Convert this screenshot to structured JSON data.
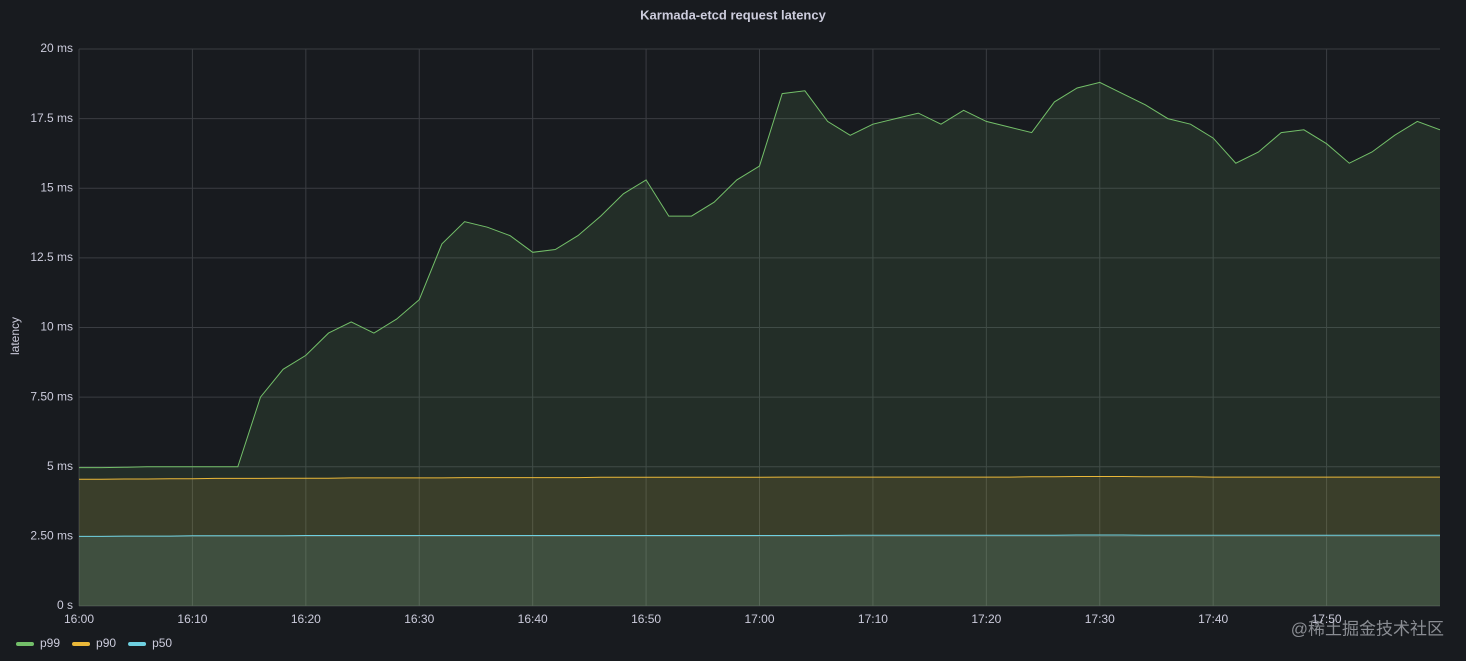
{
  "chart_data": {
    "type": "line",
    "title": "Karmada-etcd request latency",
    "y_label": "latency",
    "x": [
      0,
      2,
      4,
      6,
      8,
      10,
      12,
      14,
      16,
      18,
      20,
      22,
      24,
      26,
      28,
      30,
      32,
      34,
      36,
      38,
      40,
      42,
      44,
      46,
      48,
      50,
      52,
      54,
      56,
      58,
      60,
      62,
      64,
      66,
      68,
      70,
      72,
      74,
      76,
      78,
      80,
      82,
      84,
      86,
      88,
      90,
      92,
      94,
      96,
      98,
      100,
      102,
      104,
      106,
      108,
      110,
      112,
      114,
      116,
      118,
      120
    ],
    "series": [
      {
        "name": "p99",
        "color": "#73bf69",
        "values": [
          4.97,
          4.97,
          4.98,
          5.0,
          5.0,
          5.0,
          5.0,
          5.0,
          7.5,
          8.5,
          9.0,
          9.8,
          10.2,
          9.8,
          10.3,
          11.0,
          13.0,
          13.8,
          13.6,
          13.3,
          12.7,
          12.8,
          13.3,
          14.0,
          14.8,
          15.3,
          14.0,
          14.0,
          14.5,
          15.3,
          15.8,
          18.4,
          18.5,
          17.4,
          16.9,
          17.3,
          17.5,
          17.7,
          17.3,
          17.8,
          17.4,
          17.2,
          17.0,
          18.1,
          18.6,
          18.8,
          18.4,
          18.0,
          17.5,
          17.3,
          16.8,
          15.9,
          16.3,
          17.0,
          17.1,
          16.6,
          15.9,
          16.3,
          16.9,
          17.4,
          17.1
        ]
      },
      {
        "name": "p90",
        "color": "#eab839",
        "values": [
          4.55,
          4.55,
          4.56,
          4.56,
          4.57,
          4.57,
          4.58,
          4.58,
          4.58,
          4.59,
          4.59,
          4.59,
          4.6,
          4.6,
          4.6,
          4.6,
          4.6,
          4.61,
          4.61,
          4.61,
          4.61,
          4.61,
          4.61,
          4.62,
          4.62,
          4.62,
          4.62,
          4.62,
          4.62,
          4.62,
          4.62,
          4.63,
          4.63,
          4.63,
          4.63,
          4.63,
          4.63,
          4.63,
          4.63,
          4.63,
          4.63,
          4.63,
          4.64,
          4.64,
          4.65,
          4.65,
          4.65,
          4.64,
          4.64,
          4.64,
          4.63,
          4.63,
          4.63,
          4.63,
          4.63,
          4.63,
          4.63,
          4.63,
          4.63,
          4.63,
          4.63
        ]
      },
      {
        "name": "p50",
        "color": "#6ed0e0",
        "values": [
          2.5,
          2.5,
          2.51,
          2.51,
          2.51,
          2.52,
          2.52,
          2.52,
          2.52,
          2.52,
          2.53,
          2.53,
          2.53,
          2.53,
          2.53,
          2.53,
          2.53,
          2.53,
          2.53,
          2.53,
          2.53,
          2.53,
          2.53,
          2.53,
          2.53,
          2.53,
          2.53,
          2.53,
          2.53,
          2.53,
          2.53,
          2.53,
          2.53,
          2.53,
          2.54,
          2.54,
          2.54,
          2.54,
          2.54,
          2.54,
          2.54,
          2.54,
          2.54,
          2.54,
          2.55,
          2.55,
          2.55,
          2.54,
          2.54,
          2.54,
          2.54,
          2.54,
          2.54,
          2.54,
          2.54,
          2.54,
          2.54,
          2.54,
          2.54,
          2.54,
          2.54
        ]
      }
    ],
    "xlim": [
      0,
      120
    ],
    "ylim": [
      0,
      20
    ],
    "xticks": [
      {
        "value": 0,
        "label": "16:00"
      },
      {
        "value": 10,
        "label": "16:10"
      },
      {
        "value": 20,
        "label": "16:20"
      },
      {
        "value": 30,
        "label": "16:30"
      },
      {
        "value": 40,
        "label": "16:40"
      },
      {
        "value": 50,
        "label": "16:50"
      },
      {
        "value": 60,
        "label": "17:00"
      },
      {
        "value": 70,
        "label": "17:10"
      },
      {
        "value": 80,
        "label": "17:20"
      },
      {
        "value": 90,
        "label": "17:30"
      },
      {
        "value": 100,
        "label": "17:40"
      },
      {
        "value": 110,
        "label": "17:50"
      }
    ],
    "yticks": [
      {
        "value": 0,
        "label": "0 s"
      },
      {
        "value": 2.5,
        "label": "2.50 ms"
      },
      {
        "value": 5,
        "label": "5 ms"
      },
      {
        "value": 7.5,
        "label": "7.50 ms"
      },
      {
        "value": 10,
        "label": "10 ms"
      },
      {
        "value": 12.5,
        "label": "12.5 ms"
      },
      {
        "value": 15,
        "label": "15 ms"
      },
      {
        "value": 17.5,
        "label": "17.5 ms"
      },
      {
        "value": 20,
        "label": "20 ms"
      }
    ],
    "grid": true,
    "fill": true,
    "legend": "bottom-left"
  },
  "watermark": "@稀土掘金技术社区"
}
